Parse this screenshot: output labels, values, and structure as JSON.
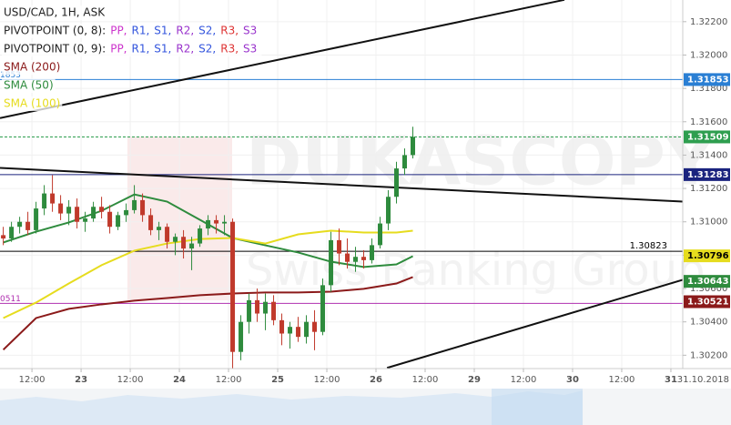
{
  "chart_data": {
    "type": "candlestick",
    "title": "USD/CAD, 1H, ASK",
    "date_label": "31.10.2018",
    "watermark": {
      "brand": "DUKASCOPY",
      "tagline": "Swiss Banking Group"
    },
    "up_color": "#2e8b3d",
    "down_color": "#c0392b",
    "x": [
      -19,
      -17,
      -15,
      -13,
      -11,
      -9,
      -7,
      -5,
      -3,
      -1,
      1,
      3,
      5,
      7,
      9,
      11,
      13,
      15,
      17,
      19,
      21,
      23,
      25,
      27,
      29,
      31,
      33,
      35,
      37,
      39,
      41,
      43,
      45,
      47,
      49,
      51,
      53,
      55,
      57,
      59,
      61,
      63,
      65,
      67,
      69,
      71,
      73,
      75,
      77,
      79,
      81
    ],
    "open": [
      1.3092,
      1.309,
      1.3097,
      1.31,
      1.3095,
      1.3108,
      1.3117,
      1.3111,
      1.3105,
      1.3109,
      1.31,
      1.3102,
      1.3109,
      1.3106,
      1.3097,
      1.3104,
      1.3107,
      1.3113,
      1.3104,
      1.3095,
      1.3097,
      1.3088,
      1.3091,
      1.3084,
      1.3087,
      1.3096,
      1.3101,
      1.3099,
      1.31,
      1.3022,
      1.304,
      1.3053,
      1.3045,
      1.3052,
      1.3041,
      1.3033,
      1.3037,
      1.3031,
      1.304,
      1.3034,
      1.3062,
      1.3089,
      1.3081,
      1.3076,
      1.3079,
      1.3077,
      1.3086,
      1.3099,
      1.3115,
      1.3132,
      1.314
    ],
    "high": [
      1.3097,
      1.31,
      1.3103,
      1.3106,
      1.3112,
      1.3122,
      1.3128,
      1.3116,
      1.3113,
      1.3114,
      1.3106,
      1.3112,
      1.3115,
      1.311,
      1.3106,
      1.3111,
      1.3122,
      1.3117,
      1.3108,
      1.31,
      1.3099,
      1.3093,
      1.3095,
      1.3091,
      1.3098,
      1.3104,
      1.3104,
      1.3104,
      1.3102,
      1.3044,
      1.3057,
      1.306,
      1.3057,
      1.3056,
      1.3045,
      1.304,
      1.3043,
      1.3044,
      1.3047,
      1.3066,
      1.3094,
      1.3096,
      1.309,
      1.3085,
      1.3083,
      1.309,
      1.3103,
      1.3119,
      1.3136,
      1.3144,
      1.3157
    ],
    "low": [
      1.3086,
      1.3088,
      1.3093,
      1.3092,
      1.3093,
      1.3104,
      1.3106,
      1.3101,
      1.3098,
      1.3096,
      1.3094,
      1.31,
      1.3102,
      1.3093,
      1.3095,
      1.31,
      1.3105,
      1.31,
      1.3092,
      1.3089,
      1.3084,
      1.308,
      1.3078,
      1.3071,
      1.3085,
      1.3092,
      1.3093,
      1.3092,
      1.3012,
      1.3017,
      1.3033,
      1.304,
      1.3035,
      1.3038,
      1.3026,
      1.3024,
      1.3028,
      1.3027,
      1.3023,
      1.3032,
      1.3058,
      1.3074,
      1.3072,
      1.307,
      1.3072,
      1.3075,
      1.3084,
      1.3095,
      1.3111,
      1.3128,
      1.3138
    ],
    "close": [
      1.309,
      1.3097,
      1.31,
      1.3095,
      1.3108,
      1.3117,
      1.3111,
      1.3105,
      1.3109,
      1.31,
      1.3102,
      1.3109,
      1.3106,
      1.3097,
      1.3104,
      1.3107,
      1.3113,
      1.3104,
      1.3095,
      1.3097,
      1.3088,
      1.3091,
      1.3084,
      1.3087,
      1.3096,
      1.3101,
      1.3099,
      1.31,
      1.3022,
      1.304,
      1.3053,
      1.3045,
      1.3052,
      1.3041,
      1.3033,
      1.3037,
      1.3031,
      1.304,
      1.3034,
      1.3062,
      1.3089,
      1.3081,
      1.3076,
      1.3079,
      1.3077,
      1.3086,
      1.3099,
      1.3115,
      1.3132,
      1.314,
      1.31509
    ],
    "last_price_color": "#2e9e4f",
    "indicators": [
      {
        "name": "SMA (200)",
        "color": "#8b1a1a",
        "x": [
          -19,
          -11,
          -3,
          5,
          13,
          21,
          29,
          37,
          45,
          53,
          61,
          69,
          77,
          81
        ],
        "values": [
          1.30233,
          1.30423,
          1.30478,
          1.30505,
          1.30527,
          1.30543,
          1.3056,
          1.3057,
          1.30576,
          1.30576,
          1.30581,
          1.30598,
          1.3063,
          1.30669
        ],
        "current": 1.30521
      },
      {
        "name": "SMA (50)",
        "color": "#2e8b3d",
        "x": [
          -19,
          -11,
          -3,
          5,
          13,
          21,
          29,
          37,
          45,
          53,
          61,
          69,
          77,
          81
        ],
        "values": [
          1.30876,
          1.30941,
          1.30996,
          1.31066,
          1.31164,
          1.31121,
          1.31012,
          1.30903,
          1.30859,
          1.30816,
          1.30761,
          1.30729,
          1.30745,
          1.30794
        ],
        "current": 1.30643
      },
      {
        "name": "SMA (100)",
        "color": "#e6dc1e",
        "x": [
          -19,
          -11,
          -3,
          5,
          13,
          21,
          29,
          37,
          45,
          53,
          61,
          69,
          77,
          81
        ],
        "values": [
          1.30423,
          1.30516,
          1.3063,
          1.3074,
          1.30827,
          1.3087,
          1.30897,
          1.30903,
          1.3087,
          1.30925,
          1.30947,
          1.30936,
          1.30936,
          1.30947
        ],
        "current": 1.30796
      }
    ],
    "pivot_legends": [
      {
        "label": "PIVOTPOINT (0, 8):",
        "items": [
          {
            "name": "PP,",
            "color": "#cc33cc"
          },
          {
            "name": "R1,",
            "color": "#3355dd"
          },
          {
            "name": "S1,",
            "color": "#3355dd"
          },
          {
            "name": "R2,",
            "color": "#9933cc"
          },
          {
            "name": "S2,",
            "color": "#3355dd"
          },
          {
            "name": "R3,",
            "color": "#dd3333"
          },
          {
            "name": "S3",
            "color": "#9933cc"
          }
        ]
      },
      {
        "label": "PIVOTPOINT (0, 9):",
        "items": [
          {
            "name": "PP,",
            "color": "#cc33cc"
          },
          {
            "name": "R1,",
            "color": "#3355dd"
          },
          {
            "name": "S1,",
            "color": "#3355dd"
          },
          {
            "name": "R2,",
            "color": "#9933cc"
          },
          {
            "name": "S2,",
            "color": "#3355dd"
          },
          {
            "name": "R3,",
            "color": "#dd3333"
          },
          {
            "name": "S3",
            "color": "#9933cc"
          }
        ]
      }
    ],
    "hlines": [
      {
        "value": 1.31853,
        "color": "#2a7fd4",
        "box": true,
        "left_label": "1853"
      },
      {
        "value": 1.31283,
        "color": "#1a237e",
        "box": true
      },
      {
        "value": 1.30823,
        "color": "#000000",
        "inline_label": true
      },
      {
        "value": 1.30511,
        "color": "#b030b0",
        "left_label": "0511"
      }
    ],
    "trendlines": [
      {
        "x": [
          -19.8,
          118
        ],
        "y": [
          1.31622,
          1.32331
        ]
      },
      {
        "x": [
          -19.8,
          146.9
        ],
        "y": [
          1.31323,
          1.31121
        ]
      },
      {
        "x": [
          74.7,
          146.9
        ],
        "y": [
          1.30124,
          1.30652
        ]
      }
    ],
    "xlim": [
      -19.8,
      146.9
    ],
    "ylim": [
      1.3012,
      1.3233
    ],
    "xticks": [
      {
        "value": -12,
        "label": "12:00"
      },
      {
        "value": 0,
        "label": "23"
      },
      {
        "value": 12,
        "label": "12:00"
      },
      {
        "value": 24,
        "label": "24"
      },
      {
        "value": 36,
        "label": "12:00"
      },
      {
        "value": 48,
        "label": "25"
      },
      {
        "value": 60,
        "label": "12:00"
      },
      {
        "value": 72,
        "label": "26"
      },
      {
        "value": 84,
        "label": "12:00"
      },
      {
        "value": 96,
        "label": "29"
      },
      {
        "value": 108,
        "label": "12:00"
      },
      {
        "value": 120,
        "label": "30"
      },
      {
        "value": 132,
        "label": "12:00"
      },
      {
        "value": 144,
        "label": "31"
      }
    ],
    "yticks": [
      {
        "value": 1.302,
        "label": "1.30200"
      },
      {
        "value": 1.304,
        "label": "1.30400"
      },
      {
        "value": 1.306,
        "label": "1.30600"
      },
      {
        "value": 1.308,
        "label": "1.30800"
      },
      {
        "value": 1.31,
        "label": "1.31000"
      },
      {
        "value": 1.312,
        "label": "1.31200"
      },
      {
        "value": 1.314,
        "label": "1.31400"
      },
      {
        "value": 1.316,
        "label": "1.31600"
      },
      {
        "value": 1.318,
        "label": "1.31800"
      },
      {
        "value": 1.32,
        "label": "1.32000"
      },
      {
        "value": 1.322,
        "label": "1.32200"
      }
    ],
    "grid": true
  }
}
